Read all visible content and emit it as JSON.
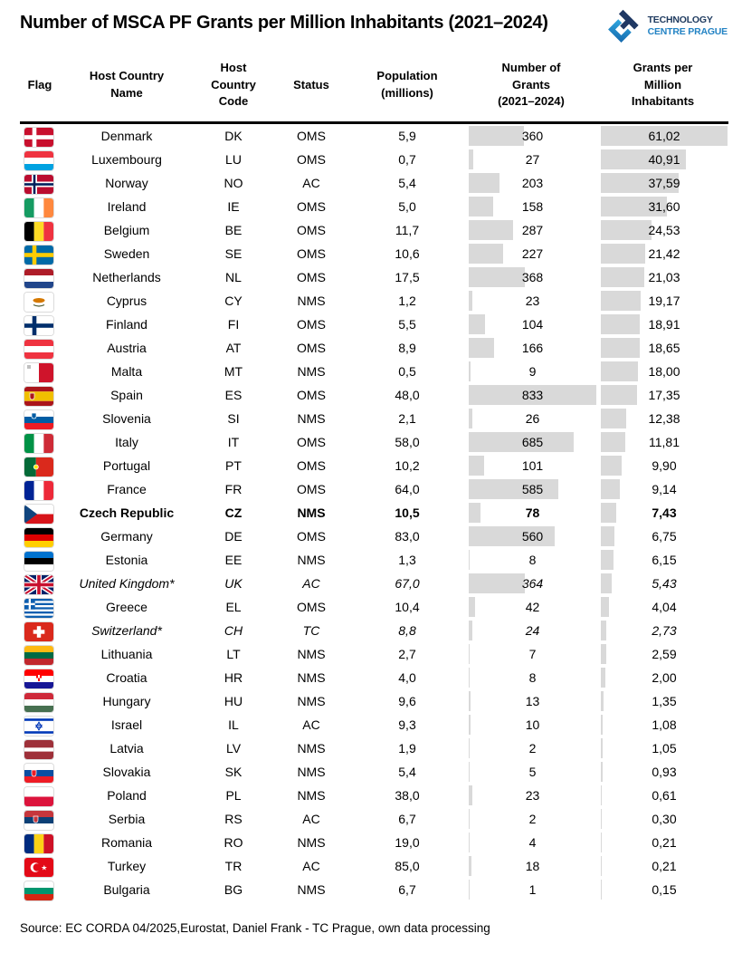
{
  "title": "Number of MSCA PF Grants per Million Inhabitants (2021–2024)",
  "logo": {
    "line1": "TECHNOLOGY",
    "line2": "CENTRE PRAGUE",
    "navy": "#1E3A5F",
    "blue": "#2383C4"
  },
  "source": "Source: EC CORDA 04/2025,Eurostat, Daniel Frank - TC Prague, own data processing",
  "table": {
    "bar_color": "#D9D9D9",
    "max_grants": 833,
    "max_gpm": 61.02,
    "columns": [
      "Flag",
      "Host Country\nName",
      "Host\nCountry\nCode",
      "Status",
      "Population\n(millions)",
      "Number of\nGrants\n(2021–2024)",
      "Grants per\nMillion\nInhabitants"
    ],
    "rows": [
      {
        "name": "Denmark",
        "code": "DK",
        "status": "OMS",
        "population": "5,9",
        "grants": 360,
        "gpm": "61,02",
        "gpm_num": 61.02,
        "style": "normal",
        "flag": {
          "t": "nordic",
          "bg": "#C8102E",
          "cross": "#FFFFFF"
        }
      },
      {
        "name": "Luxembourg",
        "code": "LU",
        "status": "OMS",
        "population": "0,7",
        "grants": 27,
        "gpm": "40,91",
        "gpm_num": 40.91,
        "style": "normal",
        "flag": {
          "t": "h",
          "c": [
            "#EF3340",
            "#FFFFFF",
            "#00A2E1"
          ]
        }
      },
      {
        "name": "Norway",
        "code": "NO",
        "status": "AC",
        "population": "5,4",
        "grants": 203,
        "gpm": "37,59",
        "gpm_num": 37.59,
        "style": "normal",
        "flag": {
          "t": "nordic",
          "bg": "#BA0C2F",
          "cross": "#FFFFFF",
          "inner": "#00205B"
        }
      },
      {
        "name": "Ireland",
        "code": "IE",
        "status": "OMS",
        "population": "5,0",
        "grants": 158,
        "gpm": "31,60",
        "gpm_num": 31.6,
        "style": "normal",
        "flag": {
          "t": "v",
          "c": [
            "#169B62",
            "#FFFFFF",
            "#FF883E"
          ]
        }
      },
      {
        "name": "Belgium",
        "code": "BE",
        "status": "OMS",
        "population": "11,7",
        "grants": 287,
        "gpm": "24,53",
        "gpm_num": 24.53,
        "style": "normal",
        "flag": {
          "t": "v",
          "c": [
            "#000000",
            "#FDDA24",
            "#EF3340"
          ]
        }
      },
      {
        "name": "Sweden",
        "code": "SE",
        "status": "OMS",
        "population": "10,6",
        "grants": 227,
        "gpm": "21,42",
        "gpm_num": 21.42,
        "style": "normal",
        "flag": {
          "t": "nordic",
          "bg": "#006AA7",
          "cross": "#FECC02"
        }
      },
      {
        "name": "Netherlands",
        "code": "NL",
        "status": "OMS",
        "population": "17,5",
        "grants": 368,
        "gpm": "21,03",
        "gpm_num": 21.03,
        "style": "normal",
        "flag": {
          "t": "h",
          "c": [
            "#AE1C28",
            "#FFFFFF",
            "#21468B"
          ]
        }
      },
      {
        "name": "Cyprus",
        "code": "CY",
        "status": "NMS",
        "population": "1,2",
        "grants": 23,
        "gpm": "19,17",
        "gpm_num": 19.17,
        "style": "normal",
        "flag": {
          "t": "cyprus",
          "island": "#D57800",
          "branch": "#4E5B31"
        }
      },
      {
        "name": "Finland",
        "code": "FI",
        "status": "OMS",
        "population": "5,5",
        "grants": 104,
        "gpm": "18,91",
        "gpm_num": 18.91,
        "style": "normal",
        "flag": {
          "t": "nordic",
          "bg": "#FFFFFF",
          "cross": "#002F6C"
        }
      },
      {
        "name": "Austria",
        "code": "AT",
        "status": "OMS",
        "population": "8,9",
        "grants": 166,
        "gpm": "18,65",
        "gpm_num": 18.65,
        "style": "normal",
        "flag": {
          "t": "h",
          "c": [
            "#EF3340",
            "#FFFFFF",
            "#EF3340"
          ]
        }
      },
      {
        "name": "Malta",
        "code": "MT",
        "status": "NMS",
        "population": "0,5",
        "grants": 9,
        "gpm": "18,00",
        "gpm_num": 18.0,
        "style": "normal",
        "flag": {
          "t": "v",
          "c": [
            "#FFFFFF",
            "#CF142B"
          ],
          "emblem": {
            "shape": "rect",
            "color": "#BFBFBF",
            "x": 3,
            "y": 2,
            "w": 4,
            "h": 4
          }
        }
      },
      {
        "name": "Spain",
        "code": "ES",
        "status": "OMS",
        "population": "48,0",
        "grants": 833,
        "gpm": "17,35",
        "gpm_num": 17.35,
        "style": "normal",
        "flag": {
          "t": "h",
          "c": [
            "#AA151B",
            "#F1BF00",
            "#AA151B"
          ],
          "w": [
            1,
            2,
            1
          ],
          "emblem": {
            "shape": "shield",
            "color": "#AD1519",
            "x": 6,
            "y": 7,
            "w": 5,
            "h": 7
          }
        }
      },
      {
        "name": "Slovenia",
        "code": "SI",
        "status": "NMS",
        "population": "2,1",
        "grants": 26,
        "gpm": "12,38",
        "gpm_num": 12.38,
        "style": "normal",
        "flag": {
          "t": "h",
          "c": [
            "#FFFFFF",
            "#005DA4",
            "#ED1C24"
          ],
          "emblem": {
            "shape": "shield",
            "color": "#005DA4",
            "x": 8,
            "y": 3,
            "w": 5,
            "h": 6
          }
        }
      },
      {
        "name": "Italy",
        "code": "IT",
        "status": "OMS",
        "population": "58,0",
        "grants": 685,
        "gpm": "11,81",
        "gpm_num": 11.81,
        "style": "normal",
        "flag": {
          "t": "v",
          "c": [
            "#009246",
            "#FFFFFF",
            "#CE2B37"
          ]
        }
      },
      {
        "name": "Portugal",
        "code": "PT",
        "status": "OMS",
        "population": "10,2",
        "grants": 101,
        "gpm": "9,90",
        "gpm_num": 9.9,
        "style": "normal",
        "flag": {
          "t": "v",
          "c": [
            "#046A38",
            "#DA291C"
          ],
          "w": [
            2,
            3
          ],
          "emblem": {
            "shape": "circle",
            "color": "#FFE900",
            "x": 10.3,
            "y": 8,
            "w": 5,
            "h": 5
          }
        }
      },
      {
        "name": "France",
        "code": "FR",
        "status": "OMS",
        "population": "64,0",
        "grants": 585,
        "gpm": "9,14",
        "gpm_num": 9.14,
        "style": "normal",
        "flag": {
          "t": "v",
          "c": [
            "#002395",
            "#FFFFFF",
            "#ED2939"
          ]
        }
      },
      {
        "name": "Czech Republic",
        "code": "CZ",
        "status": "NMS",
        "population": "10,5",
        "grants": 78,
        "gpm": "7,43",
        "gpm_num": 7.43,
        "style": "bold",
        "flag": {
          "t": "cz",
          "top": "#FFFFFF",
          "bottom": "#D7141A",
          "tri": "#11457E"
        }
      },
      {
        "name": "Germany",
        "code": "DE",
        "status": "OMS",
        "population": "83,0",
        "grants": 560,
        "gpm": "6,75",
        "gpm_num": 6.75,
        "style": "normal",
        "flag": {
          "t": "h",
          "c": [
            "#000000",
            "#DD0000",
            "#FFCE00"
          ]
        }
      },
      {
        "name": "Estonia",
        "code": "EE",
        "status": "NMS",
        "population": "1,3",
        "grants": 8,
        "gpm": "6,15",
        "gpm_num": 6.15,
        "style": "normal",
        "flag": {
          "t": "h",
          "c": [
            "#0072CE",
            "#000000",
            "#FFFFFF"
          ]
        }
      },
      {
        "name": "United Kingdom*",
        "code": "UK",
        "status": "AC",
        "population": "67,0",
        "grants": 364,
        "gpm": "5,43",
        "gpm_num": 5.43,
        "style": "italic",
        "flag": {
          "t": "uk"
        }
      },
      {
        "name": "Greece",
        "code": "EL",
        "status": "OMS",
        "population": "10,4",
        "grants": 42,
        "gpm": "4,04",
        "gpm_num": 4.04,
        "style": "normal",
        "flag": {
          "t": "greece",
          "blue": "#0D5EAF"
        }
      },
      {
        "name": "Switzerland*",
        "code": "CH",
        "status": "TC",
        "population": "8,8",
        "grants": 24,
        "gpm": "2,73",
        "gpm_num": 2.73,
        "style": "italic",
        "flag": {
          "t": "swiss",
          "bg": "#DA291C"
        }
      },
      {
        "name": "Lithuania",
        "code": "LT",
        "status": "NMS",
        "population": "2,7",
        "grants": 7,
        "gpm": "2,59",
        "gpm_num": 2.59,
        "style": "normal",
        "flag": {
          "t": "h",
          "c": [
            "#FDB913",
            "#006A44",
            "#C1272D"
          ]
        }
      },
      {
        "name": "Croatia",
        "code": "HR",
        "status": "NMS",
        "population": "4,0",
        "grants": 8,
        "gpm": "2,00",
        "gpm_num": 2.0,
        "style": "normal",
        "flag": {
          "t": "h",
          "c": [
            "#FF0000",
            "#FFFFFF",
            "#171796"
          ],
          "emblem": {
            "shape": "checker",
            "color": "#FF0000",
            "x": 13,
            "y": 6,
            "w": 6,
            "h": 7
          }
        }
      },
      {
        "name": "Hungary",
        "code": "HU",
        "status": "NMS",
        "population": "9,6",
        "grants": 13,
        "gpm": "1,35",
        "gpm_num": 1.35,
        "style": "normal",
        "flag": {
          "t": "h",
          "c": [
            "#CE2939",
            "#FFFFFF",
            "#477050"
          ]
        }
      },
      {
        "name": "Israel",
        "code": "IL",
        "status": "AC",
        "population": "9,3",
        "grants": 10,
        "gpm": "1,08",
        "gpm_num": 1.08,
        "style": "normal",
        "flag": {
          "t": "israel",
          "blue": "#0038B8"
        }
      },
      {
        "name": "Latvia",
        "code": "LV",
        "status": "NMS",
        "population": "1,9",
        "grants": 2,
        "gpm": "1,05",
        "gpm_num": 1.05,
        "style": "normal",
        "flag": {
          "t": "h",
          "c": [
            "#9E3039",
            "#FFFFFF",
            "#9E3039"
          ],
          "w": [
            2,
            1,
            2
          ]
        }
      },
      {
        "name": "Slovakia",
        "code": "SK",
        "status": "NMS",
        "population": "5,4",
        "grants": 5,
        "gpm": "0,93",
        "gpm_num": 0.93,
        "style": "normal",
        "flag": {
          "t": "h",
          "c": [
            "#FFFFFF",
            "#0B4EA2",
            "#EE1C25"
          ],
          "emblem": {
            "shape": "shield",
            "color": "#EE1C25",
            "x": 8,
            "y": 7,
            "w": 5,
            "h": 7
          }
        }
      },
      {
        "name": "Poland",
        "code": "PL",
        "status": "NMS",
        "population": "38,0",
        "grants": 23,
        "gpm": "0,61",
        "gpm_num": 0.61,
        "style": "normal",
        "flag": {
          "t": "h",
          "c": [
            "#FFFFFF",
            "#DC143C"
          ]
        }
      },
      {
        "name": "Serbia",
        "code": "RS",
        "status": "AC",
        "population": "6,7",
        "grants": 2,
        "gpm": "0,30",
        "gpm_num": 0.3,
        "style": "normal",
        "flag": {
          "t": "h",
          "c": [
            "#C6363C",
            "#0C4076",
            "#FFFFFF"
          ],
          "emblem": {
            "shape": "shield",
            "color": "#C6363C",
            "x": 10,
            "y": 6,
            "w": 5,
            "h": 7
          }
        }
      },
      {
        "name": "Romania",
        "code": "RO",
        "status": "NMS",
        "population": "19,0",
        "grants": 4,
        "gpm": "0,21",
        "gpm_num": 0.21,
        "style": "normal",
        "flag": {
          "t": "v",
          "c": [
            "#002B7F",
            "#FCD116",
            "#CE1126"
          ]
        }
      },
      {
        "name": "Turkey",
        "code": "TR",
        "status": "AC",
        "population": "85,0",
        "grants": 18,
        "gpm": "0,21",
        "gpm_num": 0.21,
        "style": "normal",
        "flag": {
          "t": "turkey",
          "bg": "#E30A17"
        }
      },
      {
        "name": "Bulgaria",
        "code": "BG",
        "status": "NMS",
        "population": "6,7",
        "grants": 1,
        "gpm": "0,15",
        "gpm_num": 0.15,
        "style": "normal",
        "flag": {
          "t": "h",
          "c": [
            "#FFFFFF",
            "#00966E",
            "#D62612"
          ]
        }
      }
    ]
  },
  "chart_data": {
    "type": "table",
    "title": "Number of MSCA PF Grants per Million Inhabitants (2021–2024)",
    "columns": [
      "Flag",
      "Host Country Name",
      "Host Country Code",
      "Status",
      "Population (millions)",
      "Number of Grants (2021–2024)",
      "Grants per Million Inhabitants"
    ],
    "bar_columns": {
      "number_of_grants": {
        "max": 833,
        "bar_color": "#D9D9D9"
      },
      "grants_per_million": {
        "max": 61.02,
        "bar_color": "#D9D9D9"
      }
    },
    "rows": [
      [
        "Denmark",
        "DK",
        "OMS",
        5.9,
        360,
        61.02
      ],
      [
        "Luxembourg",
        "LU",
        "OMS",
        0.7,
        27,
        40.91
      ],
      [
        "Norway",
        "NO",
        "AC",
        5.4,
        203,
        37.59
      ],
      [
        "Ireland",
        "IE",
        "OMS",
        5.0,
        158,
        31.6
      ],
      [
        "Belgium",
        "BE",
        "OMS",
        11.7,
        287,
        24.53
      ],
      [
        "Sweden",
        "SE",
        "OMS",
        10.6,
        227,
        21.42
      ],
      [
        "Netherlands",
        "NL",
        "OMS",
        17.5,
        368,
        21.03
      ],
      [
        "Cyprus",
        "CY",
        "NMS",
        1.2,
        23,
        19.17
      ],
      [
        "Finland",
        "FI",
        "OMS",
        5.5,
        104,
        18.91
      ],
      [
        "Austria",
        "AT",
        "OMS",
        8.9,
        166,
        18.65
      ],
      [
        "Malta",
        "MT",
        "NMS",
        0.5,
        9,
        18.0
      ],
      [
        "Spain",
        "ES",
        "OMS",
        48.0,
        833,
        17.35
      ],
      [
        "Slovenia",
        "SI",
        "NMS",
        2.1,
        26,
        12.38
      ],
      [
        "Italy",
        "IT",
        "OMS",
        58.0,
        685,
        11.81
      ],
      [
        "Portugal",
        "PT",
        "OMS",
        10.2,
        101,
        9.9
      ],
      [
        "France",
        "FR",
        "OMS",
        64.0,
        585,
        9.14
      ],
      [
        "Czech Republic",
        "CZ",
        "NMS",
        10.5,
        78,
        7.43
      ],
      [
        "Germany",
        "DE",
        "OMS",
        83.0,
        560,
        6.75
      ],
      [
        "Estonia",
        "EE",
        "NMS",
        1.3,
        8,
        6.15
      ],
      [
        "United Kingdom*",
        "UK",
        "AC",
        67.0,
        364,
        5.43
      ],
      [
        "Greece",
        "EL",
        "OMS",
        10.4,
        42,
        4.04
      ],
      [
        "Switzerland*",
        "CH",
        "TC",
        8.8,
        24,
        2.73
      ],
      [
        "Lithuania",
        "LT",
        "NMS",
        2.7,
        7,
        2.59
      ],
      [
        "Croatia",
        "HR",
        "NMS",
        4.0,
        8,
        2.0
      ],
      [
        "Hungary",
        "HU",
        "NMS",
        9.6,
        13,
        1.35
      ],
      [
        "Israel",
        "IL",
        "AC",
        9.3,
        10,
        1.08
      ],
      [
        "Latvia",
        "LV",
        "NMS",
        1.9,
        2,
        1.05
      ],
      [
        "Slovakia",
        "SK",
        "NMS",
        5.4,
        5,
        0.93
      ],
      [
        "Poland",
        "PL",
        "NMS",
        38.0,
        23,
        0.61
      ],
      [
        "Serbia",
        "RS",
        "AC",
        6.7,
        2,
        0.3
      ],
      [
        "Romania",
        "RO",
        "NMS",
        19.0,
        4,
        0.21
      ],
      [
        "Turkey",
        "TR",
        "AC",
        85.0,
        18,
        0.21
      ],
      [
        "Bulgaria",
        "BG",
        "NMS",
        6.7,
        1,
        0.15
      ]
    ]
  }
}
